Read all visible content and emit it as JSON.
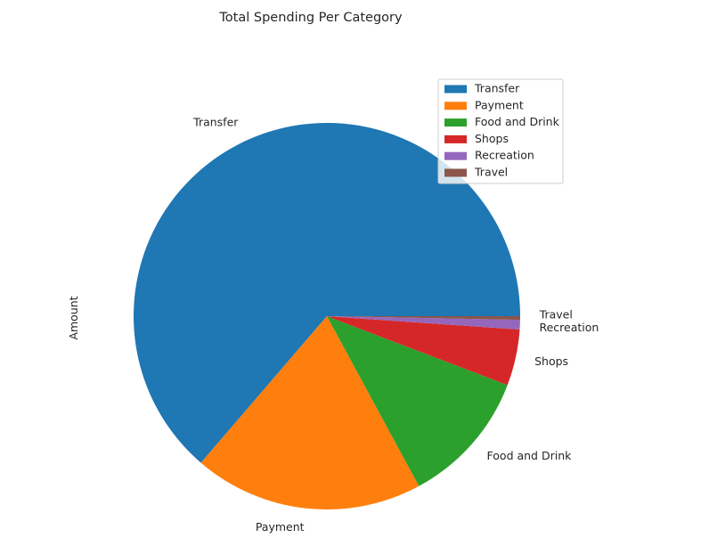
{
  "chart_data": {
    "type": "pie",
    "title": "Total Spending Per Category",
    "ylabel": "Amount",
    "xlabel": "",
    "categories": [
      "Transfer",
      "Payment",
      "Food and Drink",
      "Shops",
      "Recreation",
      "Travel"
    ],
    "values": [
      63.7,
      19.2,
      11.3,
      4.7,
      0.8,
      0.3
    ],
    "colors": [
      "#1f77b4",
      "#ff7f0e",
      "#2ca02c",
      "#d62728",
      "#9467bd",
      "#8c564b"
    ],
    "start_angle": "east, counter-clockwise",
    "legend": {
      "placement": "top-right",
      "entries": [
        "Transfer",
        "Payment",
        "Food and Drink",
        "Shops",
        "Recreation",
        "Travel"
      ]
    }
  }
}
